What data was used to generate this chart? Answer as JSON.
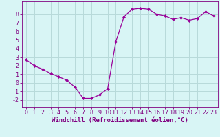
{
  "x": [
    0,
    1,
    2,
    3,
    4,
    5,
    6,
    7,
    8,
    9,
    10,
    11,
    12,
    13,
    14,
    15,
    16,
    17,
    18,
    19,
    20,
    21,
    22,
    23
  ],
  "y": [
    2.7,
    2.0,
    1.6,
    1.1,
    0.7,
    0.3,
    -0.5,
    -1.8,
    -1.8,
    -1.4,
    -0.7,
    4.8,
    7.7,
    8.6,
    8.7,
    8.6,
    8.0,
    7.8,
    7.4,
    7.6,
    7.3,
    7.5,
    8.3,
    7.8
  ],
  "line_color": "#990099",
  "marker": "D",
  "markersize": 2.0,
  "linewidth": 0.9,
  "bg_color": "#d8f5f5",
  "grid_color": "#b8dada",
  "xlabel": "Windchill (Refroidissement éolien,°C)",
  "xlabel_color": "#800080",
  "xlabel_fontsize": 6.5,
  "tick_color": "#800080",
  "tick_fontsize": 6,
  "ylim": [
    -2.8,
    9.5
  ],
  "xlim": [
    -0.5,
    23.5
  ],
  "yticks": [
    -2,
    -1,
    0,
    1,
    2,
    3,
    4,
    5,
    6,
    7,
    8
  ],
  "xticks": [
    0,
    1,
    2,
    3,
    4,
    5,
    6,
    7,
    8,
    9,
    10,
    11,
    12,
    13,
    14,
    15,
    16,
    17,
    18,
    19,
    20,
    21,
    22,
    23
  ]
}
